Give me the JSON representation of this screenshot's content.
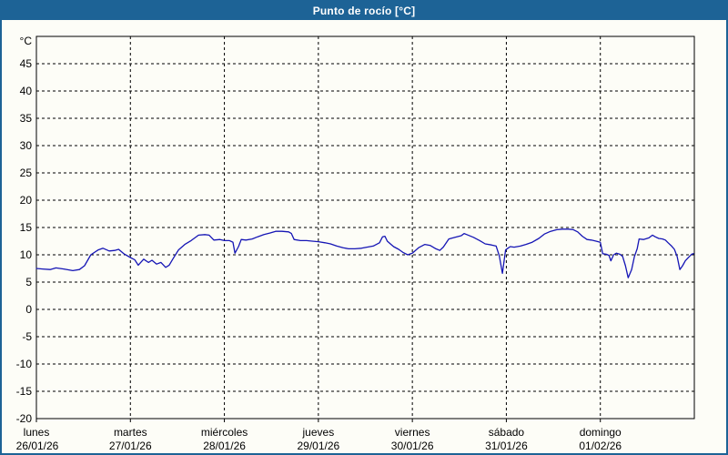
{
  "window": {
    "title": "Punto de rocío [°C]"
  },
  "colors": {
    "titlebar_bg": "#1d6396",
    "titlebar_text": "#ffffff",
    "window_border": "#1d6396",
    "background": "#fdfdf7",
    "plot_border": "#000000",
    "gridline": "#000000",
    "series_line": "#1515b5",
    "tick_text": "#000000"
  },
  "chart_data": {
    "type": "line",
    "title": "Punto de rocío [°C]",
    "ylabel": "°C",
    "ylim": [
      -20,
      50
    ],
    "yticks": [
      45,
      40,
      35,
      30,
      25,
      20,
      15,
      10,
      5,
      0,
      -5,
      -10,
      -15,
      -20
    ],
    "x_unit": "hours",
    "xlim": [
      0,
      168
    ],
    "grid": true,
    "legend_position": "none",
    "x_day_labels": [
      {
        "day": "lunes",
        "date": "26/01/26"
      },
      {
        "day": "martes",
        "date": "27/01/26"
      },
      {
        "day": "miércoles",
        "date": "28/01/26"
      },
      {
        "day": "jueves",
        "date": "29/01/26"
      },
      {
        "day": "viernes",
        "date": "30/01/26"
      },
      {
        "day": "sábado",
        "date": "31/01/26"
      },
      {
        "day": "domingo",
        "date": "01/02/26"
      }
    ],
    "series": [
      {
        "name": "Punto de rocío",
        "color": "#1515b5",
        "points": [
          [
            0,
            7.5
          ],
          [
            1.6,
            7.4
          ],
          [
            3.5,
            7.3
          ],
          [
            5,
            7.6
          ],
          [
            7,
            7.4
          ],
          [
            9.3,
            7.1
          ],
          [
            11,
            7.3
          ],
          [
            12.3,
            8.0
          ],
          [
            13.9,
            10.0
          ],
          [
            15.8,
            10.9
          ],
          [
            17,
            11.2
          ],
          [
            18.6,
            10.7
          ],
          [
            20,
            10.8
          ],
          [
            21,
            11.0
          ],
          [
            22.3,
            10.2
          ],
          [
            24,
            9.5
          ],
          [
            25.1,
            9.1
          ],
          [
            26,
            8.1
          ],
          [
            27.4,
            9.2
          ],
          [
            28.6,
            8.6
          ],
          [
            29.5,
            9.0
          ],
          [
            30.7,
            8.3
          ],
          [
            31.8,
            8.6
          ],
          [
            33,
            7.7
          ],
          [
            33.9,
            8.1
          ],
          [
            34.9,
            9.3
          ],
          [
            36.3,
            10.9
          ],
          [
            37.9,
            11.9
          ],
          [
            39.5,
            12.6
          ],
          [
            41.4,
            13.6
          ],
          [
            43,
            13.7
          ],
          [
            44.1,
            13.6
          ],
          [
            45.3,
            12.7
          ],
          [
            46.9,
            12.8
          ],
          [
            48,
            12.6
          ],
          [
            49.3,
            12.6
          ],
          [
            50.2,
            12.3
          ],
          [
            50.7,
            10.3
          ],
          [
            51.6,
            11.5
          ],
          [
            52.3,
            12.8
          ],
          [
            53.5,
            12.7
          ],
          [
            55.1,
            12.9
          ],
          [
            56.5,
            13.3
          ],
          [
            58.1,
            13.7
          ],
          [
            59.7,
            14.0
          ],
          [
            61.1,
            14.3
          ],
          [
            62.7,
            14.3
          ],
          [
            64.4,
            14.2
          ],
          [
            65.1,
            13.9
          ],
          [
            65.8,
            12.8
          ],
          [
            67.4,
            12.6
          ],
          [
            69,
            12.6
          ],
          [
            70.4,
            12.5
          ],
          [
            72,
            12.4
          ],
          [
            73.7,
            12.2
          ],
          [
            75.1,
            12.0
          ],
          [
            76.7,
            11.6
          ],
          [
            78.3,
            11.3
          ],
          [
            79.7,
            11.1
          ],
          [
            81.3,
            11.1
          ],
          [
            83,
            11.2
          ],
          [
            84.4,
            11.4
          ],
          [
            86,
            11.6
          ],
          [
            87.6,
            12.2
          ],
          [
            88.4,
            13.3
          ],
          [
            89,
            13.4
          ],
          [
            89.6,
            12.5
          ],
          [
            90.4,
            12.0
          ],
          [
            91.2,
            11.5
          ],
          [
            92.5,
            11.0
          ],
          [
            93.7,
            10.4
          ],
          [
            94.8,
            10.0
          ],
          [
            96,
            10.3
          ],
          [
            97.6,
            11.3
          ],
          [
            99.2,
            11.9
          ],
          [
            100.6,
            11.7
          ],
          [
            102,
            11.1
          ],
          [
            103,
            10.8
          ],
          [
            103.9,
            11.4
          ],
          [
            105.3,
            12.9
          ],
          [
            106.9,
            13.2
          ],
          [
            108.5,
            13.5
          ],
          [
            109.2,
            13.9
          ],
          [
            109.9,
            13.7
          ],
          [
            111.6,
            13.2
          ],
          [
            113.2,
            12.6
          ],
          [
            114.6,
            12.0
          ],
          [
            116.2,
            11.8
          ],
          [
            117.4,
            11.6
          ],
          [
            118.2,
            9.8
          ],
          [
            119,
            6.6
          ],
          [
            119.8,
            10.9
          ],
          [
            120.4,
            11.2
          ],
          [
            121,
            11.5
          ],
          [
            122,
            11.4
          ],
          [
            123.6,
            11.6
          ],
          [
            125,
            11.9
          ],
          [
            126.6,
            12.3
          ],
          [
            128.3,
            13.0
          ],
          [
            129.7,
            13.8
          ],
          [
            131.3,
            14.3
          ],
          [
            132.9,
            14.6
          ],
          [
            134.3,
            14.7
          ],
          [
            135.9,
            14.7
          ],
          [
            137.1,
            14.6
          ],
          [
            138.2,
            14.2
          ],
          [
            139.4,
            13.4
          ],
          [
            140.6,
            12.8
          ],
          [
            141.7,
            12.7
          ],
          [
            142.9,
            12.5
          ],
          [
            144,
            12.3
          ],
          [
            144.6,
            10.2
          ],
          [
            145.5,
            10.1
          ],
          [
            146.2,
            9.9
          ],
          [
            146.7,
            8.9
          ],
          [
            147.4,
            10.0
          ],
          [
            148.1,
            10.3
          ],
          [
            149,
            10.1
          ],
          [
            149.7,
            9.7
          ],
          [
            150.4,
            8.0
          ],
          [
            151.1,
            5.8
          ],
          [
            152,
            7.3
          ],
          [
            152.7,
            9.7
          ],
          [
            153.4,
            11.1
          ],
          [
            153.9,
            12.9
          ],
          [
            155,
            12.8
          ],
          [
            156.4,
            13.1
          ],
          [
            157.3,
            13.6
          ],
          [
            158,
            13.3
          ],
          [
            158.9,
            13.0
          ],
          [
            159.9,
            12.9
          ],
          [
            160.6,
            12.7
          ],
          [
            161.3,
            12.2
          ],
          [
            162.2,
            11.6
          ],
          [
            162.9,
            11.0
          ],
          [
            163.6,
            9.7
          ],
          [
            164.3,
            7.3
          ],
          [
            165,
            8.0
          ],
          [
            165.7,
            8.9
          ],
          [
            166.6,
            9.6
          ],
          [
            167.3,
            10.1
          ],
          [
            167.8,
            10.2
          ]
        ]
      }
    ]
  }
}
